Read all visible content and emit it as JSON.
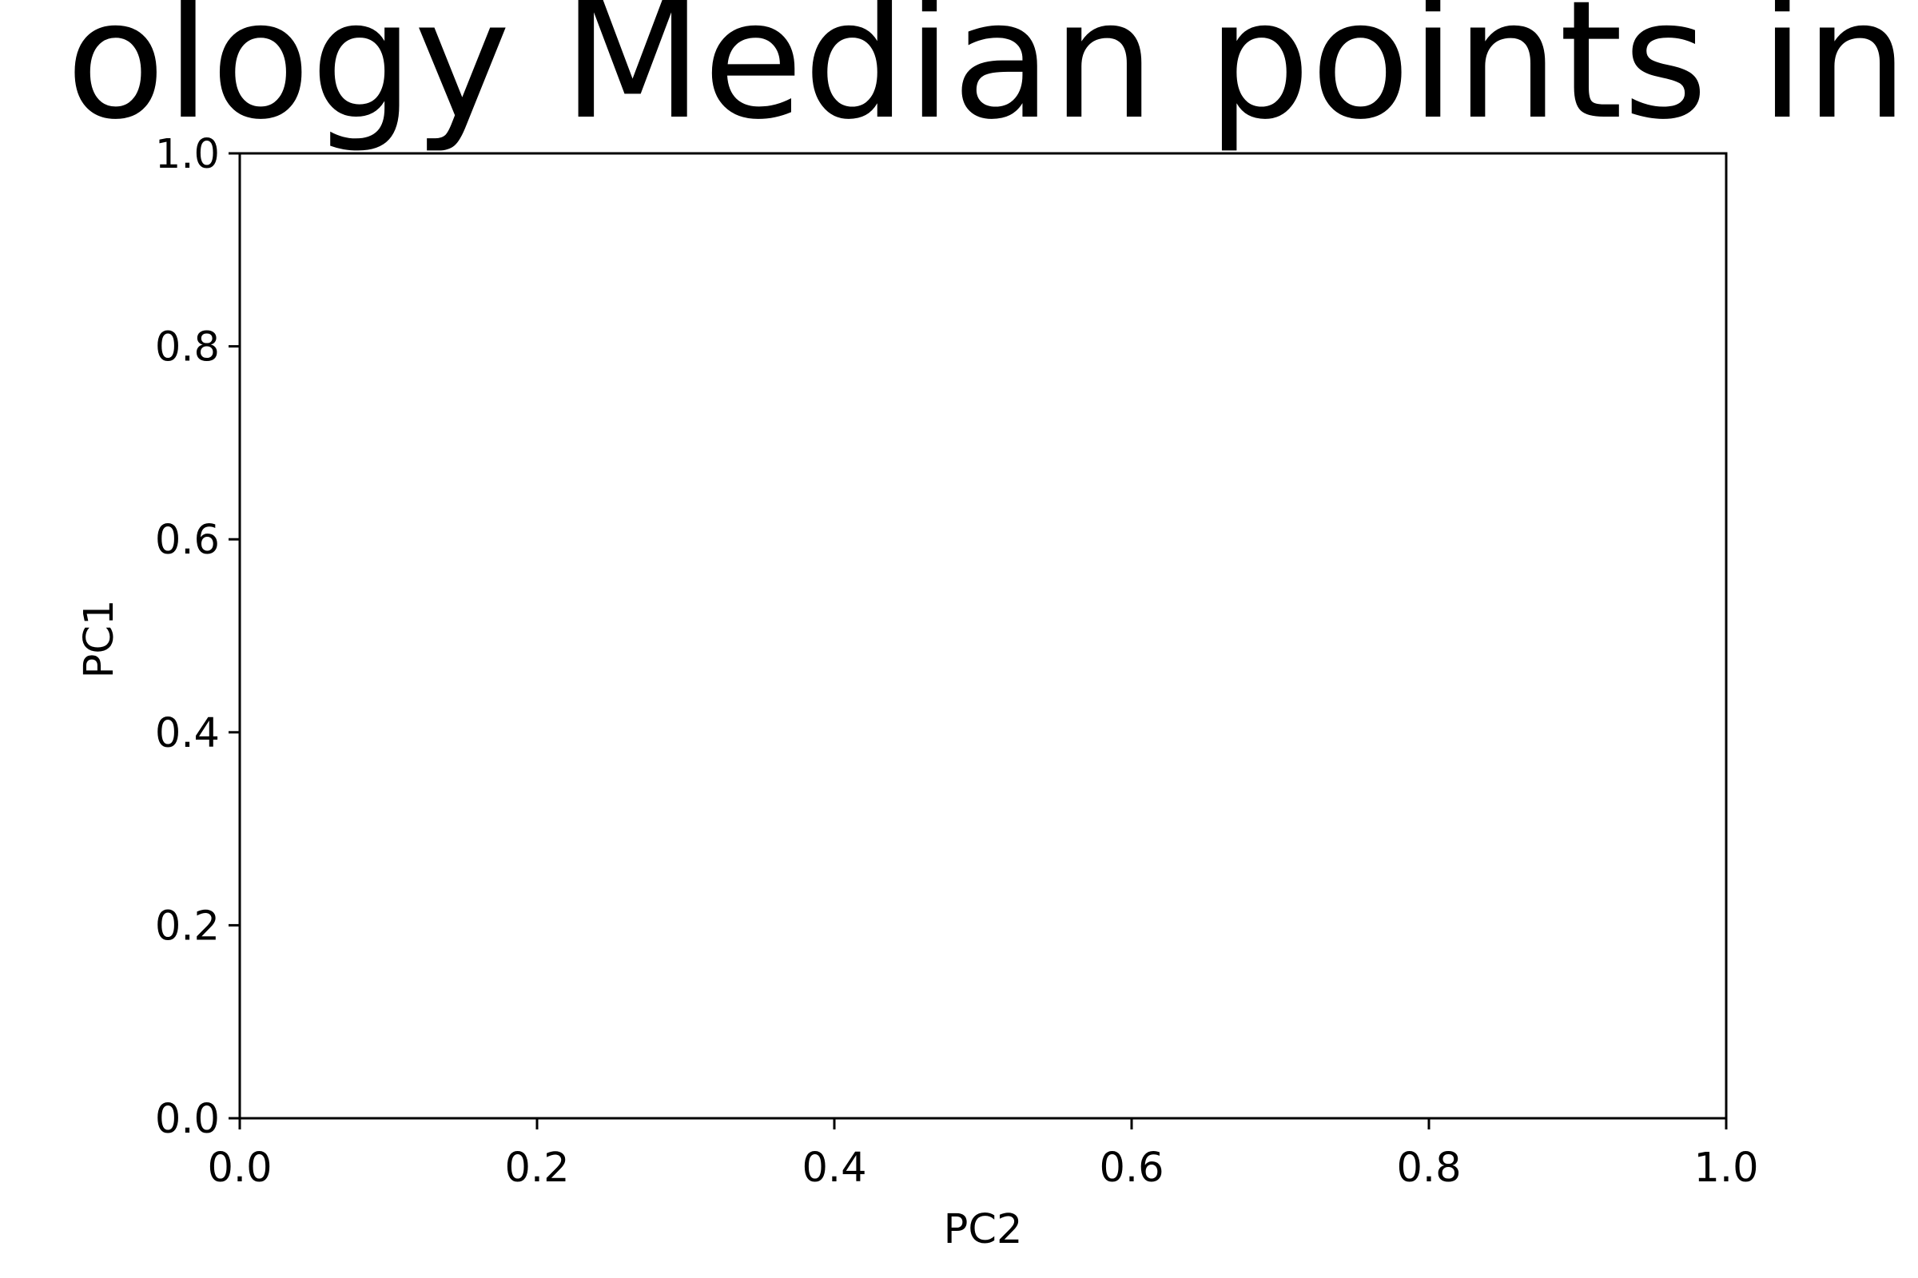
{
  "chart_data": {
    "type": "scatter",
    "title": "ology Median points in",
    "xlabel": "PC2",
    "ylabel": "PC1",
    "xlim": [
      0.0,
      1.0
    ],
    "ylim": [
      0.0,
      1.0
    ],
    "x_ticks": [
      "0.0",
      "0.2",
      "0.4",
      "0.6",
      "0.8",
      "1.0"
    ],
    "y_ticks": [
      "0.0",
      "0.2",
      "0.4",
      "0.6",
      "0.8",
      "1.0"
    ],
    "grid": false,
    "series": []
  }
}
